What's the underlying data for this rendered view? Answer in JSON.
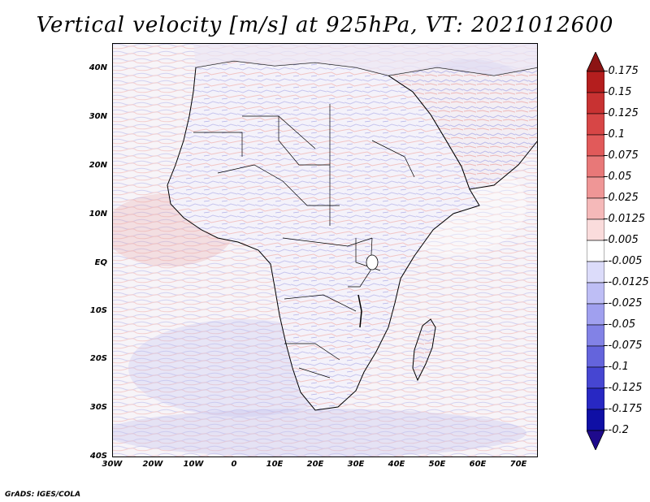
{
  "title": "Vertical velocity [m/s] at 925hPa, VT: 2021012600",
  "map": {
    "region": "Africa",
    "lat_labels": [
      "40N",
      "30N",
      "20N",
      "10N",
      "EQ",
      "10S",
      "20S",
      "30S",
      "40S"
    ],
    "lon_labels": [
      "30W",
      "20W",
      "10W",
      "0",
      "10E",
      "20E",
      "30E",
      "40E",
      "50E",
      "60E",
      "70E"
    ]
  },
  "colorbar": {
    "levels": [
      "0.175",
      "0.15",
      "0.125",
      "0.1",
      "0.075",
      "0.05",
      "0.025",
      "0.0125",
      "0.005",
      "-0.005",
      "-0.0125",
      "-0.025",
      "-0.05",
      "-0.075",
      "-0.1",
      "-0.125",
      "-0.175",
      "-0.2"
    ],
    "colors": [
      "#b41e1e",
      "#c83232",
      "#d74646",
      "#e15a5a",
      "#e87878",
      "#ef9696",
      "#f5b9b9",
      "#fadcdc",
      "#ffffff",
      "#dcdcfa",
      "#bebef5",
      "#a0a0ef",
      "#8282e6",
      "#6464dc",
      "#4646d2",
      "#2828c3",
      "#0f0fa5"
    ],
    "top_arrow_color": "#8c1414",
    "bottom_arrow_color": "#1e0a8c"
  },
  "footer": "GrADS: IGES/COLA"
}
